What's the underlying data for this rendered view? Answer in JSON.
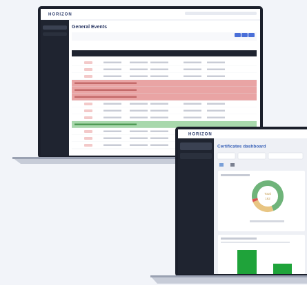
{
  "laptop_events": {
    "brand": "HORIZON",
    "title": "General Events"
  },
  "laptop_certificates": {
    "brand": "HORIZON",
    "title": "Certificates dashboard",
    "donut": {
      "center_label": "Total",
      "center_value": "162",
      "segments": [
        {
          "color": "#6fb47a",
          "value": 72
        },
        {
          "color": "#e8c583",
          "value": 25
        },
        {
          "color": "#d9534f",
          "value": 3
        }
      ]
    }
  }
}
